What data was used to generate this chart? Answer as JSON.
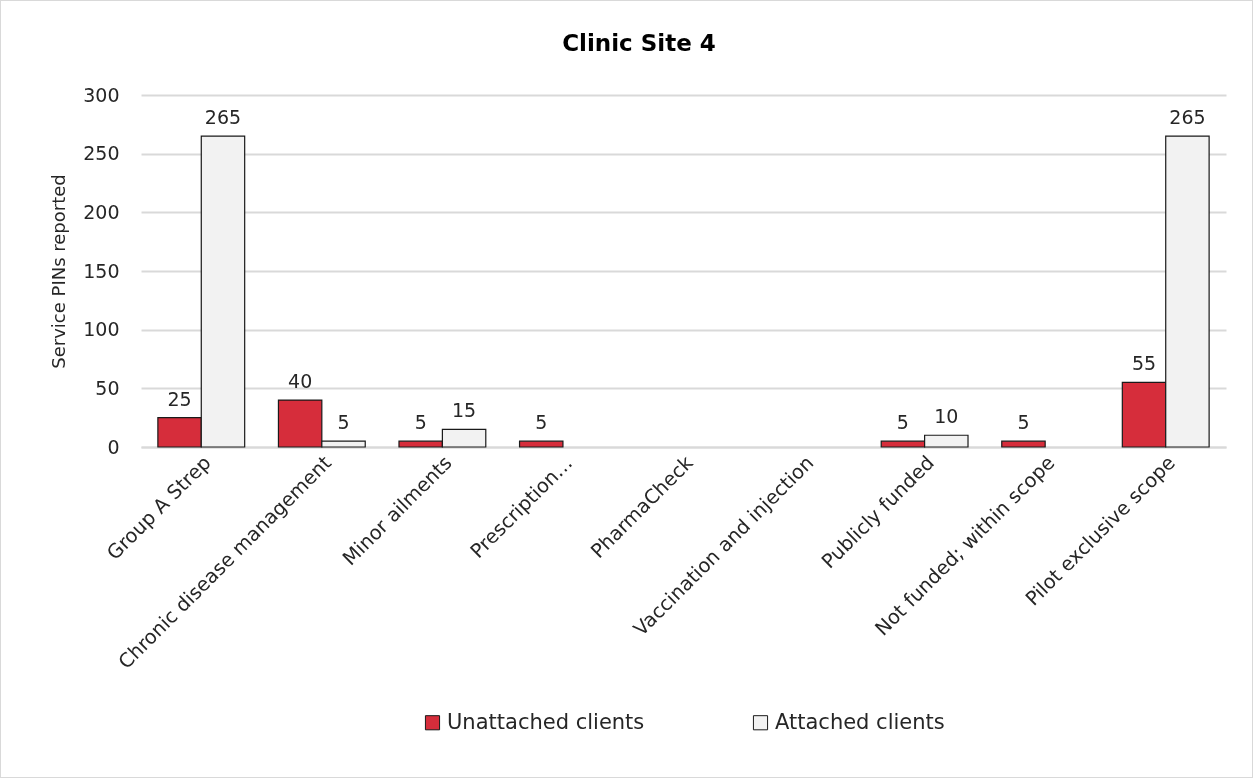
{
  "chart_data": {
    "type": "bar",
    "title": "Clinic Site 4",
    "ylabel": "Service PINs reported",
    "categories": [
      "Group A Strep",
      "Chronic disease management",
      "Minor ailments",
      "Prescription…",
      "PharmaCheck",
      "Vaccination and injection",
      "Publicly funded",
      "Not funded; within scope",
      "Pilot exclusive scope"
    ],
    "series": [
      {
        "name": "Unattached clients",
        "color": "#d62d3b",
        "values": [
          25,
          40,
          5,
          5,
          null,
          null,
          5,
          5,
          55
        ]
      },
      {
        "name": "Attached clients",
        "color": "#f2f2f2",
        "values": [
          265,
          5,
          15,
          null,
          null,
          null,
          10,
          null,
          265
        ]
      }
    ],
    "ylim": [
      0,
      300
    ],
    "yticks": [
      0,
      50,
      100,
      150,
      200,
      250,
      300
    ],
    "grid": "y",
    "legend": "bottom",
    "data_labels": true
  }
}
